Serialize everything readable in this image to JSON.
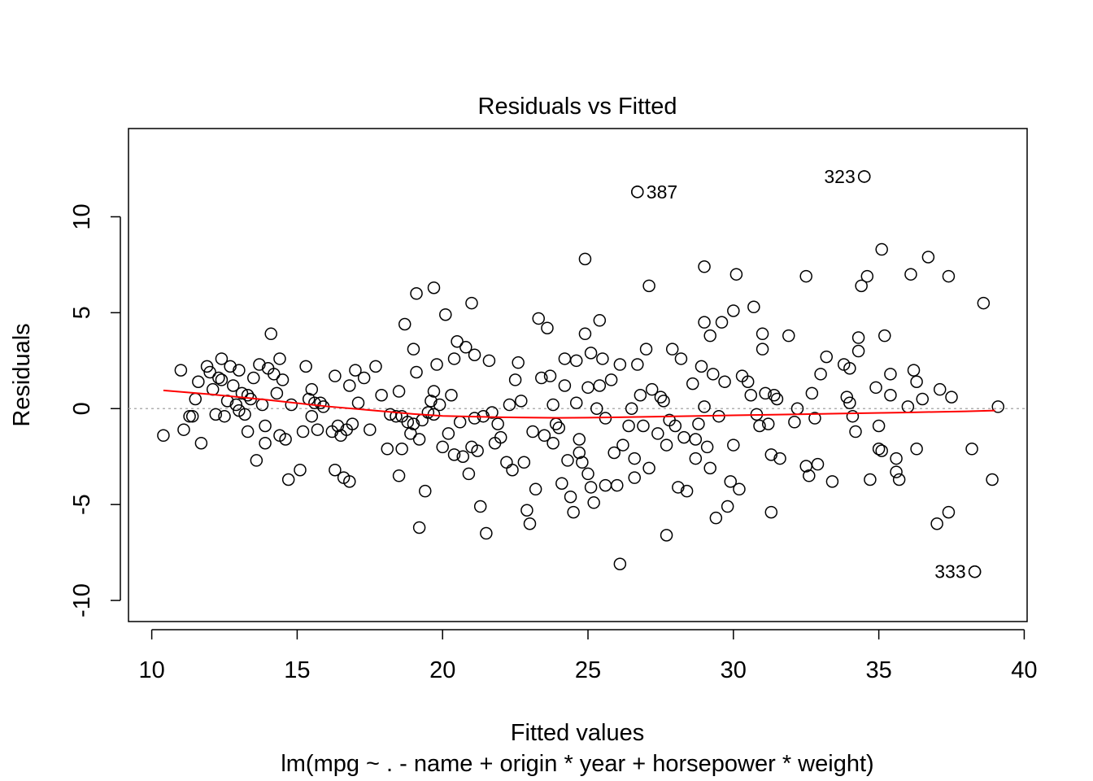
{
  "chart_data": {
    "type": "scatter",
    "title": "Residuals vs Fitted",
    "xlabel": "Fitted values",
    "subtitle": "lm(mpg ~ . - name + origin * year + horsepower * weight)",
    "ylabel": "Residuals",
    "xlim": [
      9.2,
      40.1
    ],
    "ylim": [
      -11.1,
      14.6
    ],
    "xticks": [
      10,
      15,
      20,
      25,
      30,
      35,
      40
    ],
    "yticks": [
      -10,
      -5,
      0,
      5,
      10
    ],
    "grid": false,
    "zero_reference_line": true,
    "colors": {
      "points": "#000000",
      "smooth": "#ff0000",
      "reference": "#b0b0b0"
    },
    "labeled_points": [
      {
        "label": "387",
        "x": 26.7,
        "y": 11.3
      },
      {
        "label": "323",
        "x": 34.5,
        "y": 12.1
      },
      {
        "label": "333",
        "x": 38.3,
        "y": -8.5
      }
    ],
    "smooth_line": [
      [
        10.4,
        0.95
      ],
      [
        12.0,
        0.75
      ],
      [
        14.0,
        0.45
      ],
      [
        16.0,
        0.12
      ],
      [
        17.5,
        -0.08
      ],
      [
        19.0,
        -0.28
      ],
      [
        20.0,
        -0.38
      ],
      [
        22.0,
        -0.45
      ],
      [
        24.0,
        -0.48
      ],
      [
        25.0,
        -0.47
      ],
      [
        26.5,
        -0.44
      ],
      [
        28.0,
        -0.4
      ],
      [
        30.0,
        -0.35
      ],
      [
        32.0,
        -0.3
      ],
      [
        34.0,
        -0.25
      ],
      [
        36.0,
        -0.2
      ],
      [
        38.0,
        -0.14
      ],
      [
        39.0,
        -0.1
      ]
    ],
    "points": [
      [
        10.4,
        -1.4
      ],
      [
        11.0,
        2.0
      ],
      [
        11.1,
        -1.1
      ],
      [
        11.3,
        -0.4
      ],
      [
        11.4,
        -0.4
      ],
      [
        11.5,
        0.5
      ],
      [
        11.6,
        1.4
      ],
      [
        11.7,
        -1.8
      ],
      [
        11.9,
        2.2
      ],
      [
        12.0,
        1.9
      ],
      [
        12.1,
        1.0
      ],
      [
        12.2,
        -0.3
      ],
      [
        12.3,
        1.6
      ],
      [
        12.4,
        2.6
      ],
      [
        12.4,
        1.5
      ],
      [
        12.5,
        -0.4
      ],
      [
        12.6,
        0.4
      ],
      [
        12.7,
        2.2
      ],
      [
        12.8,
        1.2
      ],
      [
        12.9,
        0.2
      ],
      [
        13.0,
        2.0
      ],
      [
        13.0,
        -0.1
      ],
      [
        13.1,
        0.8
      ],
      [
        13.2,
        -0.3
      ],
      [
        13.3,
        0.7
      ],
      [
        13.3,
        -1.2
      ],
      [
        13.4,
        0.5
      ],
      [
        13.5,
        1.6
      ],
      [
        13.6,
        -2.7
      ],
      [
        13.7,
        2.3
      ],
      [
        13.8,
        0.2
      ],
      [
        13.9,
        -0.9
      ],
      [
        13.9,
        -1.8
      ],
      [
        14.0,
        2.1
      ],
      [
        14.1,
        3.9
      ],
      [
        14.2,
        1.8
      ],
      [
        14.3,
        0.8
      ],
      [
        14.4,
        2.6
      ],
      [
        14.4,
        -1.4
      ],
      [
        14.5,
        1.5
      ],
      [
        14.6,
        -1.6
      ],
      [
        14.7,
        -3.7
      ],
      [
        14.8,
        0.2
      ],
      [
        15.1,
        -3.2
      ],
      [
        15.2,
        -1.2
      ],
      [
        15.3,
        2.2
      ],
      [
        15.4,
        0.5
      ],
      [
        15.5,
        1.0
      ],
      [
        15.5,
        -0.4
      ],
      [
        15.6,
        0.3
      ],
      [
        15.7,
        -1.1
      ],
      [
        15.8,
        0.3
      ],
      [
        15.9,
        0.1
      ],
      [
        16.2,
        -1.2
      ],
      [
        16.3,
        1.7
      ],
      [
        16.3,
        -3.2
      ],
      [
        16.4,
        -0.9
      ],
      [
        16.5,
        -1.4
      ],
      [
        16.6,
        -3.6
      ],
      [
        16.7,
        -1.1
      ],
      [
        16.8,
        1.2
      ],
      [
        16.8,
        -3.8
      ],
      [
        16.9,
        -0.8
      ],
      [
        17.0,
        2.0
      ],
      [
        17.1,
        0.3
      ],
      [
        17.3,
        1.6
      ],
      [
        17.5,
        -1.1
      ],
      [
        17.7,
        2.2
      ],
      [
        17.9,
        0.7
      ],
      [
        18.1,
        -2.1
      ],
      [
        18.2,
        -0.3
      ],
      [
        18.4,
        -0.4
      ],
      [
        18.5,
        0.9
      ],
      [
        18.5,
        -3.5
      ],
      [
        18.6,
        -2.1
      ],
      [
        18.6,
        -0.4
      ],
      [
        18.7,
        4.4
      ],
      [
        18.8,
        -0.7
      ],
      [
        18.9,
        -1.3
      ],
      [
        19.0,
        3.1
      ],
      [
        19.0,
        -0.8
      ],
      [
        19.1,
        6.0
      ],
      [
        19.1,
        1.9
      ],
      [
        19.2,
        -6.2
      ],
      [
        19.2,
        -1.6
      ],
      [
        19.3,
        -0.6
      ],
      [
        19.4,
        -4.3
      ],
      [
        19.5,
        -0.2
      ],
      [
        19.6,
        0.4
      ],
      [
        19.7,
        6.3
      ],
      [
        19.7,
        0.9
      ],
      [
        19.7,
        -0.3
      ],
      [
        19.8,
        2.3
      ],
      [
        19.9,
        0.2
      ],
      [
        20.0,
        -2.0
      ],
      [
        20.1,
        4.9
      ],
      [
        20.2,
        -1.3
      ],
      [
        20.3,
        0.7
      ],
      [
        20.4,
        2.6
      ],
      [
        20.4,
        -2.4
      ],
      [
        20.5,
        3.5
      ],
      [
        20.6,
        -0.7
      ],
      [
        20.7,
        -2.5
      ],
      [
        20.8,
        3.2
      ],
      [
        20.9,
        -3.4
      ],
      [
        21.0,
        -2.0
      ],
      [
        21.0,
        5.5
      ],
      [
        21.1,
        2.8
      ],
      [
        21.1,
        -0.5
      ],
      [
        21.2,
        -2.2
      ],
      [
        21.3,
        -5.1
      ],
      [
        21.4,
        -0.4
      ],
      [
        21.5,
        -6.5
      ],
      [
        21.6,
        2.5
      ],
      [
        21.7,
        -0.2
      ],
      [
        21.8,
        -1.8
      ],
      [
        21.9,
        -0.8
      ],
      [
        22.0,
        -1.5
      ],
      [
        22.2,
        -2.8
      ],
      [
        22.3,
        0.2
      ],
      [
        22.4,
        -3.2
      ],
      [
        22.5,
        1.5
      ],
      [
        22.6,
        2.4
      ],
      [
        22.7,
        0.4
      ],
      [
        22.8,
        -2.8
      ],
      [
        22.9,
        -5.3
      ],
      [
        23.0,
        -6.0
      ],
      [
        23.1,
        -1.2
      ],
      [
        23.2,
        -4.2
      ],
      [
        23.3,
        4.7
      ],
      [
        23.4,
        1.6
      ],
      [
        23.5,
        -1.4
      ],
      [
        23.6,
        4.2
      ],
      [
        23.7,
        1.7
      ],
      [
        23.8,
        0.2
      ],
      [
        23.8,
        -1.8
      ],
      [
        23.9,
        -0.8
      ],
      [
        24.0,
        -1.0
      ],
      [
        24.1,
        -3.9
      ],
      [
        24.2,
        2.6
      ],
      [
        24.2,
        1.2
      ],
      [
        24.3,
        -2.7
      ],
      [
        24.4,
        -4.6
      ],
      [
        24.5,
        -5.4
      ],
      [
        24.6,
        2.5
      ],
      [
        24.6,
        0.3
      ],
      [
        24.7,
        -1.6
      ],
      [
        24.7,
        -2.3
      ],
      [
        24.8,
        -2.8
      ],
      [
        24.9,
        7.8
      ],
      [
        24.9,
        3.9
      ],
      [
        25.0,
        1.1
      ],
      [
        25.0,
        -3.4
      ],
      [
        25.1,
        2.9
      ],
      [
        25.1,
        -4.1
      ],
      [
        25.2,
        -4.9
      ],
      [
        25.3,
        0.0
      ],
      [
        25.4,
        4.6
      ],
      [
        25.4,
        1.2
      ],
      [
        25.5,
        2.6
      ],
      [
        25.6,
        -0.5
      ],
      [
        25.6,
        -4.0
      ],
      [
        25.8,
        1.5
      ],
      [
        25.9,
        -2.3
      ],
      [
        26.0,
        -4.0
      ],
      [
        26.1,
        2.3
      ],
      [
        26.1,
        -8.1
      ],
      [
        26.2,
        -1.9
      ],
      [
        26.4,
        -0.9
      ],
      [
        26.5,
        0.0
      ],
      [
        26.6,
        -2.6
      ],
      [
        26.6,
        -3.6
      ],
      [
        26.7,
        11.3
      ],
      [
        26.7,
        2.3
      ],
      [
        26.8,
        0.7
      ],
      [
        26.9,
        -0.9
      ],
      [
        27.0,
        3.1
      ],
      [
        27.1,
        6.4
      ],
      [
        27.1,
        -3.1
      ],
      [
        27.2,
        1.0
      ],
      [
        27.4,
        -1.3
      ],
      [
        27.5,
        0.6
      ],
      [
        27.6,
        0.4
      ],
      [
        27.7,
        -6.6
      ],
      [
        27.7,
        -1.9
      ],
      [
        27.8,
        -0.6
      ],
      [
        27.9,
        3.1
      ],
      [
        28.0,
        -0.9
      ],
      [
        28.1,
        -4.1
      ],
      [
        28.2,
        2.6
      ],
      [
        28.3,
        -1.5
      ],
      [
        28.4,
        -4.3
      ],
      [
        28.6,
        1.3
      ],
      [
        28.7,
        -2.6
      ],
      [
        28.7,
        -1.6
      ],
      [
        28.8,
        -0.8
      ],
      [
        28.9,
        2.2
      ],
      [
        29.0,
        7.4
      ],
      [
        29.0,
        4.5
      ],
      [
        29.0,
        0.1
      ],
      [
        29.1,
        -2.0
      ],
      [
        29.2,
        3.8
      ],
      [
        29.2,
        -3.1
      ],
      [
        29.3,
        1.8
      ],
      [
        29.4,
        -5.7
      ],
      [
        29.5,
        -0.4
      ],
      [
        29.6,
        4.5
      ],
      [
        29.7,
        1.4
      ],
      [
        29.8,
        -5.1
      ],
      [
        29.9,
        -3.8
      ],
      [
        30.0,
        -1.9
      ],
      [
        30.0,
        5.1
      ],
      [
        30.1,
        7.0
      ],
      [
        30.2,
        -4.2
      ],
      [
        30.3,
        1.7
      ],
      [
        30.5,
        1.4
      ],
      [
        30.6,
        0.7
      ],
      [
        30.7,
        5.3
      ],
      [
        30.8,
        -0.3
      ],
      [
        30.9,
        -0.9
      ],
      [
        31.0,
        3.9
      ],
      [
        31.0,
        3.1
      ],
      [
        31.1,
        0.8
      ],
      [
        31.2,
        -0.8
      ],
      [
        31.3,
        -2.4
      ],
      [
        31.3,
        -5.4
      ],
      [
        31.4,
        0.7
      ],
      [
        31.5,
        0.5
      ],
      [
        31.6,
        -2.6
      ],
      [
        31.9,
        3.8
      ],
      [
        32.1,
        -0.7
      ],
      [
        32.2,
        0.0
      ],
      [
        32.5,
        6.9
      ],
      [
        32.5,
        -3.0
      ],
      [
        32.6,
        -3.5
      ],
      [
        32.7,
        0.8
      ],
      [
        32.8,
        -0.5
      ],
      [
        32.9,
        -2.9
      ],
      [
        33.0,
        1.8
      ],
      [
        33.2,
        2.7
      ],
      [
        33.4,
        -3.8
      ],
      [
        33.8,
        2.3
      ],
      [
        33.9,
        0.6
      ],
      [
        34.0,
        2.1
      ],
      [
        34.0,
        0.3
      ],
      [
        34.1,
        -0.4
      ],
      [
        34.2,
        -1.2
      ],
      [
        34.3,
        3.7
      ],
      [
        34.3,
        3.0
      ],
      [
        34.4,
        6.4
      ],
      [
        34.5,
        12.1
      ],
      [
        34.6,
        6.9
      ],
      [
        34.7,
        -3.7
      ],
      [
        34.9,
        1.1
      ],
      [
        35.0,
        -0.9
      ],
      [
        35.0,
        -2.1
      ],
      [
        35.1,
        8.3
      ],
      [
        35.1,
        -2.2
      ],
      [
        35.2,
        3.8
      ],
      [
        35.4,
        1.8
      ],
      [
        35.4,
        0.7
      ],
      [
        35.6,
        -2.6
      ],
      [
        35.7,
        -3.7
      ],
      [
        35.6,
        -3.3
      ],
      [
        36.0,
        0.1
      ],
      [
        36.1,
        7.0
      ],
      [
        36.2,
        2.0
      ],
      [
        36.3,
        1.4
      ],
      [
        36.3,
        -2.1
      ],
      [
        36.5,
        0.5
      ],
      [
        36.7,
        7.9
      ],
      [
        37.0,
        -6.0
      ],
      [
        37.1,
        1.0
      ],
      [
        37.4,
        -5.4
      ],
      [
        37.4,
        6.9
      ],
      [
        37.5,
        0.6
      ],
      [
        38.2,
        -2.1
      ],
      [
        38.3,
        -8.5
      ],
      [
        38.6,
        5.5
      ],
      [
        38.9,
        -3.7
      ],
      [
        39.1,
        0.1
      ]
    ]
  }
}
